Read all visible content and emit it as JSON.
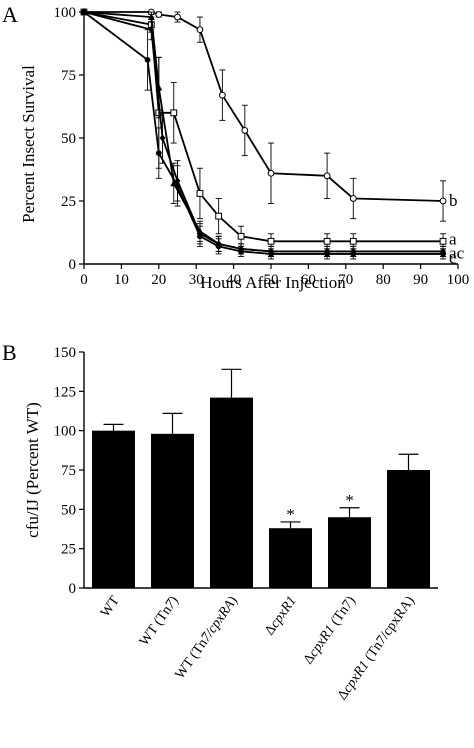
{
  "chart_data": [
    {
      "panel": "A",
      "type": "line",
      "xlabel": "Hours After Injection",
      "ylabel": "Percent Insect Survival",
      "xlim": [
        0,
        100
      ],
      "ylim": [
        0,
        100
      ],
      "xticks": [
        0,
        10,
        20,
        30,
        40,
        50,
        60,
        70,
        80,
        90,
        100
      ],
      "yticks": [
        0,
        25,
        50,
        75,
        100
      ],
      "series": [
        {
          "name": "b",
          "marker": "open-circle",
          "x": [
            0,
            18,
            20,
            25,
            31,
            37,
            43,
            50,
            65,
            72,
            96
          ],
          "y": [
            100,
            100,
            99,
            98,
            93,
            67,
            53,
            36,
            35,
            26,
            25
          ],
          "err": [
            0,
            1,
            1,
            2,
            5,
            10,
            10,
            12,
            9,
            8,
            8
          ]
        },
        {
          "name": "a",
          "marker": "open-square",
          "x": [
            0,
            18,
            20,
            24,
            31,
            36,
            42,
            50,
            65,
            72,
            96
          ],
          "y": [
            100,
            95,
            60,
            60,
            28,
            19,
            11,
            9,
            9,
            9,
            9
          ],
          "err": [
            0,
            3,
            22,
            12,
            10,
            7,
            4,
            3,
            3,
            3,
            3
          ]
        },
        {
          "name": "c",
          "marker": "filled-triangle",
          "x": [
            0,
            18,
            20,
            24,
            31,
            36,
            42,
            50,
            65,
            72,
            96
          ],
          "y": [
            100,
            98,
            70,
            32,
            13,
            8,
            6,
            5,
            5,
            5,
            5
          ],
          "err": [
            0,
            2,
            12,
            8,
            4,
            3,
            2,
            2,
            2,
            2,
            2
          ]
        },
        {
          "name": "c",
          "marker": "filled-circle",
          "x": [
            0,
            17,
            20,
            25,
            31,
            36,
            42,
            50,
            65,
            72,
            96
          ],
          "y": [
            100,
            81,
            44,
            31,
            11,
            7,
            5,
            4,
            4,
            4,
            4
          ],
          "err": [
            0,
            12,
            10,
            8,
            4,
            3,
            2,
            2,
            2,
            2,
            2
          ]
        },
        {
          "name": "ac",
          "marker": "filled-diamond",
          "x": [
            0,
            18,
            21,
            25,
            31,
            36,
            42,
            50,
            65,
            72,
            96
          ],
          "y": [
            100,
            93,
            50,
            33,
            12,
            8,
            6,
            5,
            5,
            5,
            5
          ],
          "err": [
            0,
            4,
            10,
            8,
            4,
            3,
            2,
            2,
            2,
            2,
            2
          ]
        }
      ]
    },
    {
      "panel": "B",
      "type": "bar",
      "ylabel": "cfu/IJ (Percent WT)",
      "ylim": [
        0,
        150
      ],
      "yticks": [
        0,
        25,
        50,
        75,
        100,
        125,
        150
      ],
      "categories": [
        {
          "plain": "WT",
          "italic": "",
          "suffix": ""
        },
        {
          "plain": "WT (Tn",
          "italic": "7",
          "suffix": ")"
        },
        {
          "plain": "WT (Tn",
          "italic": "7/cpxRA",
          "suffix": ")"
        },
        {
          "plain": "Δ",
          "italic": "cpxR1",
          "suffix": ""
        },
        {
          "plain": "Δ",
          "italic": "cpxR1",
          "suffix": " (Tn7)"
        },
        {
          "plain": "Δ",
          "italic": "cpxR1",
          "suffix": " (Tn7/cpxRA)"
        }
      ],
      "values": [
        100,
        98,
        121,
        38,
        45,
        75
      ],
      "errors": [
        4,
        13,
        18,
        4,
        6,
        10
      ],
      "significance": [
        "",
        "",
        "",
        "*",
        "*",
        ""
      ]
    }
  ]
}
